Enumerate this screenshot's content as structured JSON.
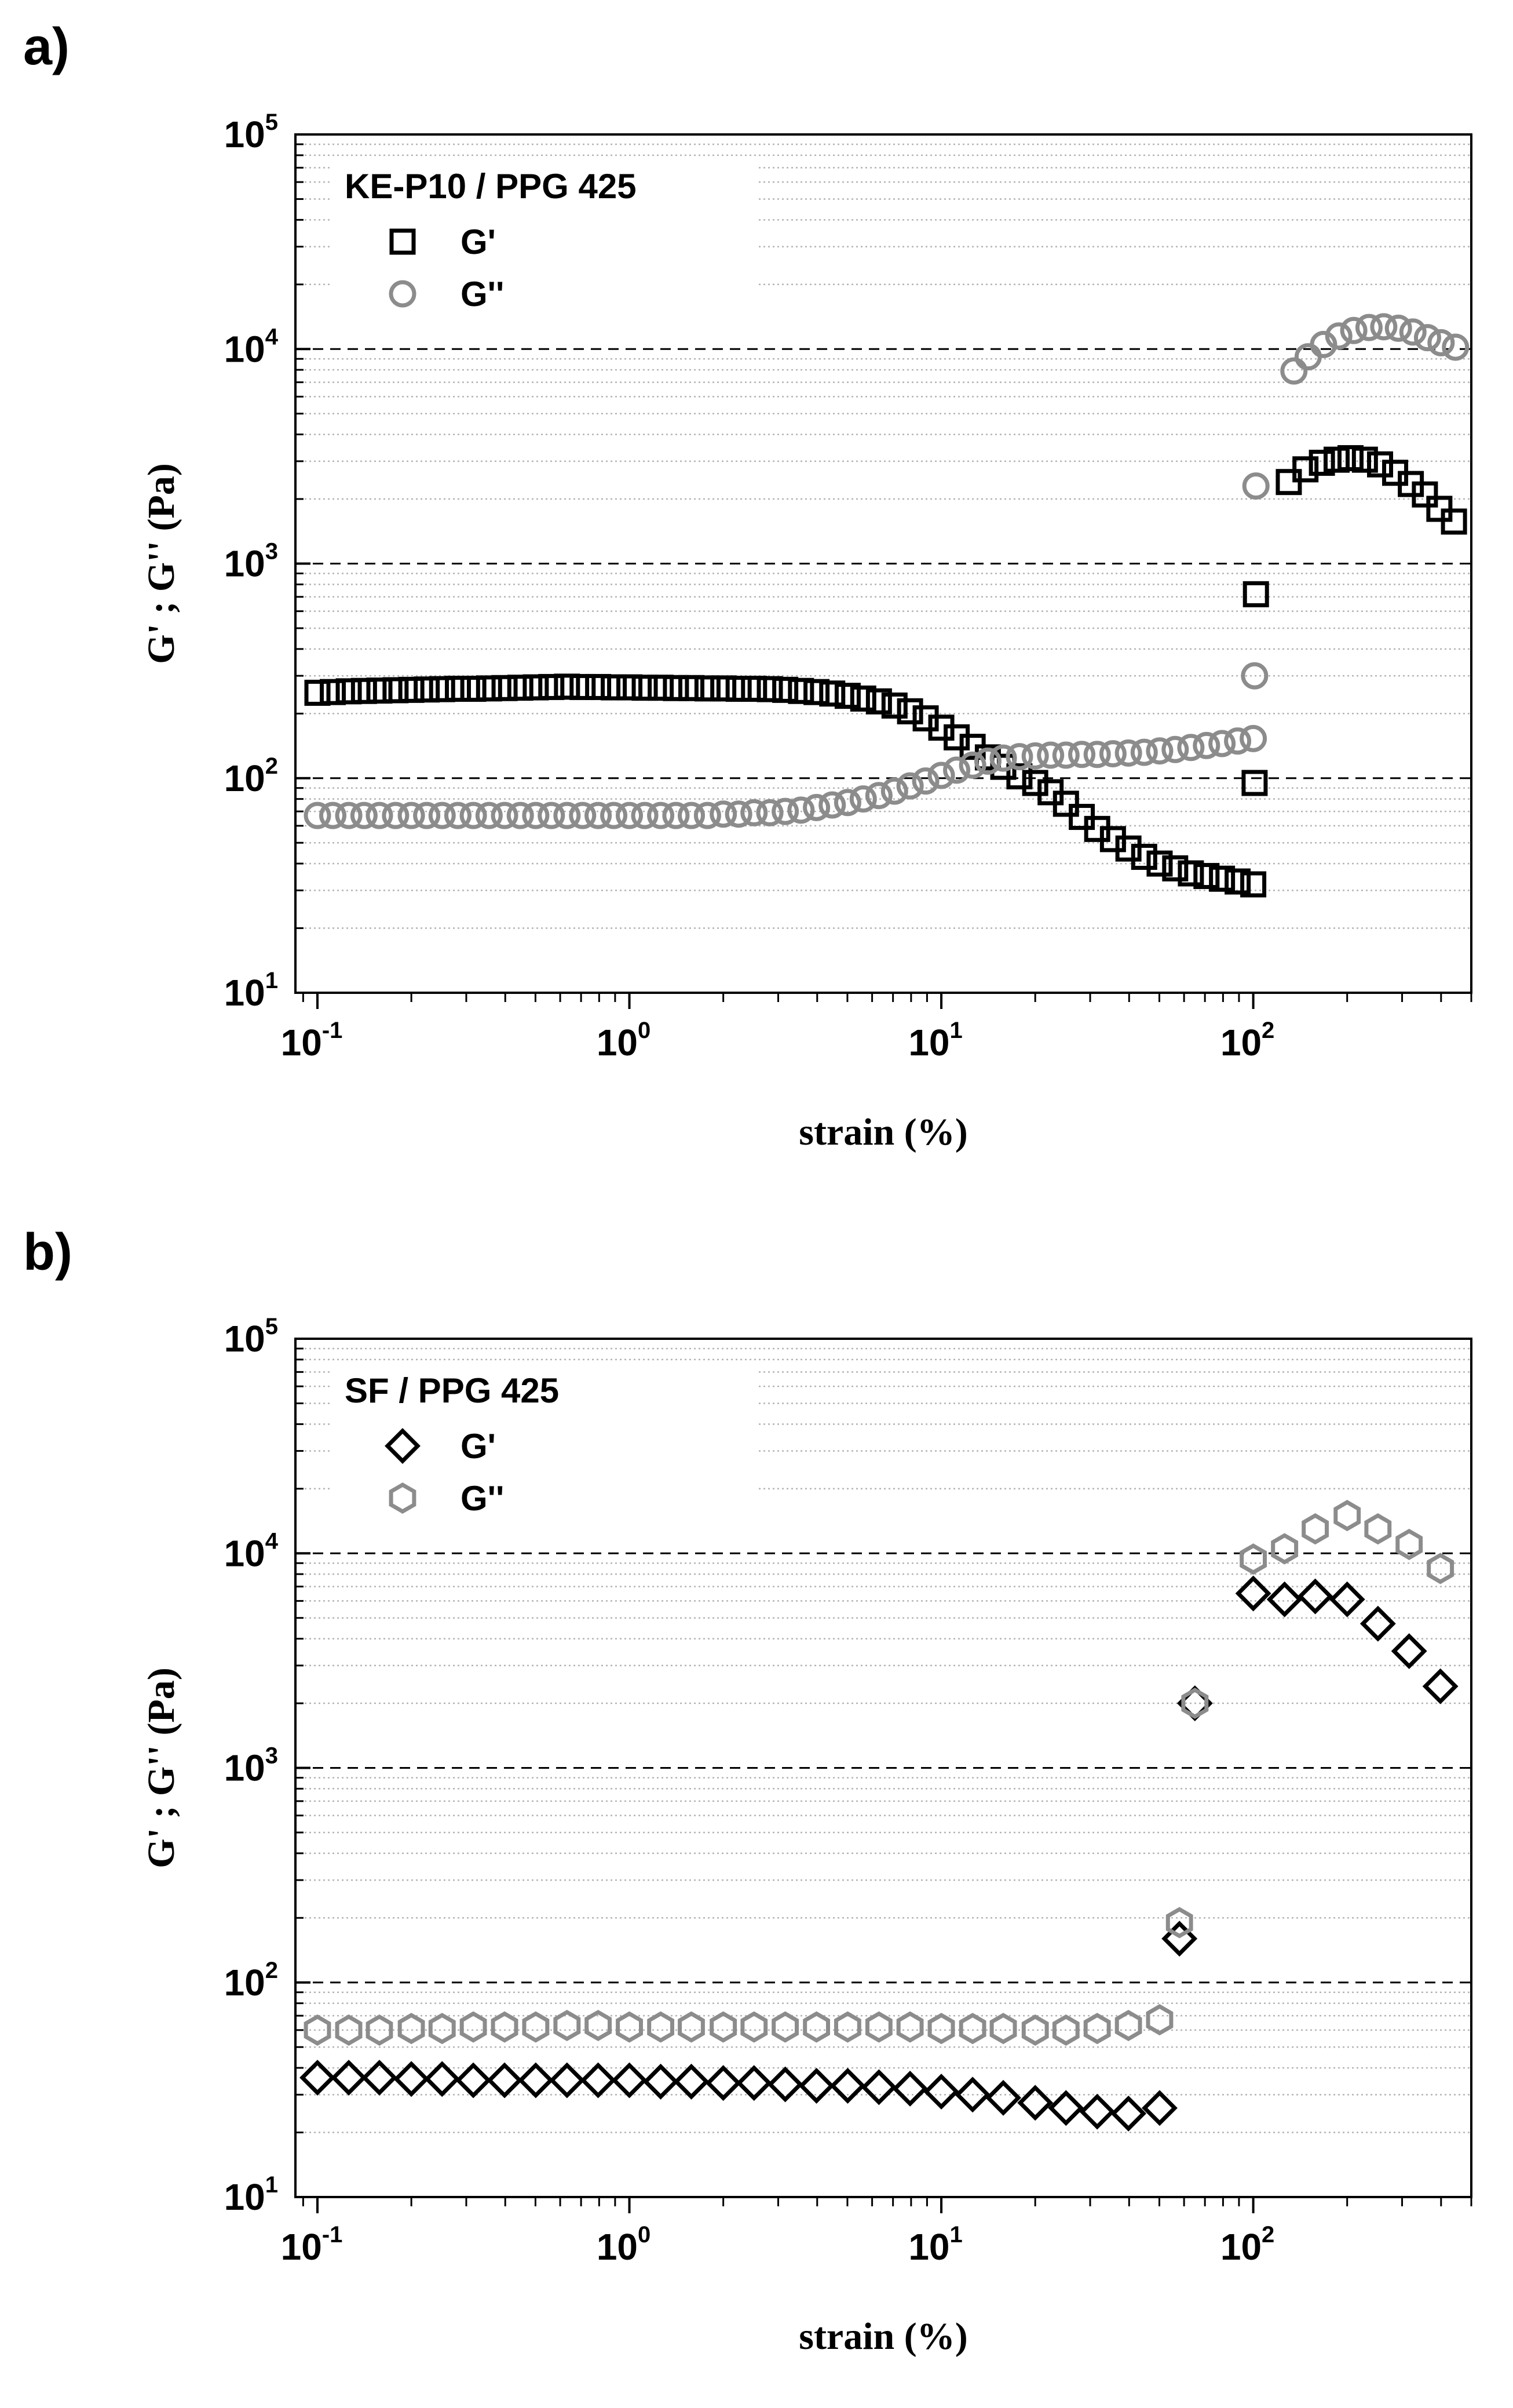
{
  "panels": {
    "a": {
      "label": "a)"
    },
    "b": {
      "label": "b)"
    }
  },
  "colors": {
    "gprime": "#000000",
    "gdouble": "#8c8c8c",
    "grid": "#b4b4b4",
    "decade": "#000000"
  },
  "chart_data": [
    {
      "type": "scatter",
      "x_scale": "log",
      "y_scale": "log",
      "xlim": [
        0.085,
        500
      ],
      "ylim": [
        10,
        100000
      ],
      "xlabel": "strain   (%)",
      "ylabel": "G' ; G''   (Pa)",
      "x_ticks": [
        {
          "base": "10",
          "exp": "-1",
          "value": 0.1
        },
        {
          "base": "10",
          "exp": "0",
          "value": 1
        },
        {
          "base": "10",
          "exp": "1",
          "value": 10
        },
        {
          "base": "10",
          "exp": "2",
          "value": 100
        }
      ],
      "y_ticks": [
        {
          "base": "10",
          "exp": "1",
          "value": 10
        },
        {
          "base": "10",
          "exp": "2",
          "value": 100
        },
        {
          "base": "10",
          "exp": "3",
          "value": 1000
        },
        {
          "base": "10",
          "exp": "4",
          "value": 10000
        },
        {
          "base": "10",
          "exp": "5",
          "value": 100000
        }
      ],
      "legend": {
        "title": "KE-P10 / PPG 425",
        "position": "top-left"
      },
      "series": [
        {
          "name": "G'",
          "marker": "square",
          "color": "#000000",
          "points": [
            [
              0.1,
              250
            ],
            [
              0.112,
              252
            ],
            [
              0.126,
              254
            ],
            [
              0.141,
              255
            ],
            [
              0.158,
              256
            ],
            [
              0.178,
              257
            ],
            [
              0.2,
              258
            ],
            [
              0.224,
              259
            ],
            [
              0.251,
              260
            ],
            [
              0.282,
              261
            ],
            [
              0.316,
              261
            ],
            [
              0.355,
              262
            ],
            [
              0.398,
              263
            ],
            [
              0.447,
              264
            ],
            [
              0.501,
              265
            ],
            [
              0.562,
              266
            ],
            [
              0.631,
              267
            ],
            [
              0.708,
              266
            ],
            [
              0.794,
              266
            ],
            [
              0.891,
              265
            ],
            [
              1.0,
              265
            ],
            [
              1.12,
              264
            ],
            [
              1.26,
              264
            ],
            [
              1.41,
              263
            ],
            [
              1.58,
              263
            ],
            [
              1.78,
              262
            ],
            [
              2.0,
              262
            ],
            [
              2.24,
              261
            ],
            [
              2.51,
              261
            ],
            [
              2.82,
              260
            ],
            [
              3.16,
              258
            ],
            [
              3.55,
              255
            ],
            [
              3.98,
              252
            ],
            [
              4.47,
              248
            ],
            [
              5.01,
              242
            ],
            [
              5.62,
              235
            ],
            [
              6.31,
              228
            ],
            [
              7.08,
              218
            ],
            [
              7.94,
              205
            ],
            [
              8.91,
              190
            ],
            [
              10.0,
              172
            ],
            [
              11.2,
              155
            ],
            [
              12.6,
              140
            ],
            [
              14.1,
              125
            ],
            [
              15.8,
              113
            ],
            [
              17.8,
              102
            ],
            [
              20.0,
              95
            ],
            [
              22.4,
              86
            ],
            [
              25.1,
              76
            ],
            [
              28.2,
              66
            ],
            [
              31.6,
              58
            ],
            [
              35.5,
              52
            ],
            [
              39.8,
              47
            ],
            [
              44.7,
              43
            ],
            [
              50.1,
              40
            ],
            [
              56.2,
              38
            ],
            [
              63.1,
              36
            ],
            [
              70.8,
              35
            ],
            [
              79.4,
              34
            ],
            [
              89.1,
              33
            ],
            [
              100,
              32
            ],
            [
              101,
              95
            ],
            [
              102,
              720
            ],
            [
              130,
              2400
            ],
            [
              147,
              2750
            ],
            [
              166,
              2950
            ],
            [
              185,
              3050
            ],
            [
              205,
              3100
            ],
            [
              228,
              3050
            ],
            [
              255,
              2900
            ],
            [
              285,
              2650
            ],
            [
              320,
              2350
            ],
            [
              355,
              2100
            ],
            [
              395,
              1800
            ],
            [
              440,
              1570
            ]
          ]
        },
        {
          "name": "G''",
          "marker": "circle",
          "color": "#8c8c8c",
          "points": [
            [
              0.1,
              67
            ],
            [
              0.112,
              67
            ],
            [
              0.126,
              67
            ],
            [
              0.141,
              67
            ],
            [
              0.158,
              67
            ],
            [
              0.178,
              67
            ],
            [
              0.2,
              67
            ],
            [
              0.224,
              67
            ],
            [
              0.251,
              67
            ],
            [
              0.282,
              67
            ],
            [
              0.316,
              67
            ],
            [
              0.355,
              67
            ],
            [
              0.398,
              67
            ],
            [
              0.447,
              67
            ],
            [
              0.501,
              67
            ],
            [
              0.562,
              67
            ],
            [
              0.631,
              67
            ],
            [
              0.708,
              67
            ],
            [
              0.794,
              67
            ],
            [
              0.891,
              67
            ],
            [
              1.0,
              67
            ],
            [
              1.12,
              67
            ],
            [
              1.26,
              67
            ],
            [
              1.41,
              67
            ],
            [
              1.58,
              67
            ],
            [
              1.78,
              67
            ],
            [
              2.0,
              68
            ],
            [
              2.24,
              68
            ],
            [
              2.51,
              69
            ],
            [
              2.82,
              69
            ],
            [
              3.16,
              70
            ],
            [
              3.55,
              71
            ],
            [
              3.98,
              73
            ],
            [
              4.47,
              75
            ],
            [
              5.01,
              77
            ],
            [
              5.62,
              80
            ],
            [
              6.31,
              83
            ],
            [
              7.08,
              87
            ],
            [
              7.94,
              92
            ],
            [
              8.91,
              97
            ],
            [
              10.0,
              103
            ],
            [
              11.2,
              109
            ],
            [
              12.6,
              115
            ],
            [
              14.1,
              120
            ],
            [
              15.8,
              124
            ],
            [
              17.8,
              126
            ],
            [
              20.0,
              127
            ],
            [
              22.4,
              128
            ],
            [
              25.1,
              128
            ],
            [
              28.2,
              129
            ],
            [
              31.6,
              129
            ],
            [
              35.5,
              130
            ],
            [
              39.8,
              131
            ],
            [
              44.7,
              132
            ],
            [
              50.1,
              134
            ],
            [
              56.2,
              136
            ],
            [
              63.1,
              139
            ],
            [
              70.8,
              142
            ],
            [
              79.4,
              145
            ],
            [
              89.1,
              149
            ],
            [
              100,
              153
            ],
            [
              101,
              300
            ],
            [
              102,
              2300
            ],
            [
              135,
              7900
            ],
            [
              150,
              9200
            ],
            [
              168,
              10500
            ],
            [
              188,
              11500
            ],
            [
              210,
              12200
            ],
            [
              235,
              12600
            ],
            [
              262,
              12700
            ],
            [
              292,
              12500
            ],
            [
              325,
              12000
            ],
            [
              362,
              11300
            ],
            [
              400,
              10700
            ],
            [
              445,
              10200
            ]
          ]
        }
      ]
    },
    {
      "type": "scatter",
      "x_scale": "log",
      "y_scale": "log",
      "xlim": [
        0.085,
        500
      ],
      "ylim": [
        10,
        100000
      ],
      "xlabel": "strain   (%)",
      "ylabel": "G' ; G''   (Pa)",
      "x_ticks": [
        {
          "base": "10",
          "exp": "-1",
          "value": 0.1
        },
        {
          "base": "10",
          "exp": "0",
          "value": 1
        },
        {
          "base": "10",
          "exp": "1",
          "value": 10
        },
        {
          "base": "10",
          "exp": "2",
          "value": 100
        }
      ],
      "y_ticks": [
        {
          "base": "10",
          "exp": "1",
          "value": 10
        },
        {
          "base": "10",
          "exp": "2",
          "value": 100
        },
        {
          "base": "10",
          "exp": "3",
          "value": 1000
        },
        {
          "base": "10",
          "exp": "4",
          "value": 10000
        },
        {
          "base": "10",
          "exp": "5",
          "value": 100000
        }
      ],
      "legend": {
        "title": "SF / PPG 425",
        "position": "top-left"
      },
      "series": [
        {
          "name": "G'",
          "marker": "diamond",
          "color": "#000000",
          "points": [
            [
              0.1,
              36
            ],
            [
              0.126,
              36
            ],
            [
              0.158,
              36
            ],
            [
              0.2,
              35.5
            ],
            [
              0.251,
              35.5
            ],
            [
              0.316,
              35
            ],
            [
              0.398,
              35
            ],
            [
              0.501,
              35
            ],
            [
              0.631,
              35
            ],
            [
              0.794,
              35
            ],
            [
              1.0,
              35
            ],
            [
              1.26,
              34.5
            ],
            [
              1.58,
              34.5
            ],
            [
              2.0,
              34
            ],
            [
              2.51,
              34
            ],
            [
              3.16,
              33.5
            ],
            [
              3.98,
              33
            ],
            [
              5.01,
              33
            ],
            [
              6.31,
              32.5
            ],
            [
              7.94,
              32
            ],
            [
              10.0,
              31
            ],
            [
              12.6,
              30
            ],
            [
              15.8,
              29
            ],
            [
              20.0,
              27.5
            ],
            [
              25.1,
              26
            ],
            [
              31.6,
              25
            ],
            [
              39.8,
              24.5
            ],
            [
              50.1,
              26
            ],
            [
              58,
              160
            ],
            [
              65,
              2000
            ],
            [
              100,
              6500
            ],
            [
              126,
              6100
            ],
            [
              158,
              6300
            ],
            [
              200,
              6100
            ],
            [
              251,
              4700
            ],
            [
              316,
              3500
            ],
            [
              398,
              2400
            ]
          ]
        },
        {
          "name": "G''",
          "marker": "hexagon",
          "color": "#8c8c8c",
          "points": [
            [
              0.1,
              60
            ],
            [
              0.126,
              60
            ],
            [
              0.158,
              60
            ],
            [
              0.2,
              61
            ],
            [
              0.251,
              61
            ],
            [
              0.316,
              62
            ],
            [
              0.398,
              62
            ],
            [
              0.501,
              62
            ],
            [
              0.631,
              63
            ],
            [
              0.794,
              63
            ],
            [
              1.0,
              62
            ],
            [
              1.26,
              62
            ],
            [
              1.58,
              62
            ],
            [
              2.0,
              62
            ],
            [
              2.51,
              62
            ],
            [
              3.16,
              62
            ],
            [
              3.98,
              62
            ],
            [
              5.01,
              62
            ],
            [
              6.31,
              62
            ],
            [
              7.94,
              62
            ],
            [
              10.0,
              61
            ],
            [
              12.6,
              61
            ],
            [
              15.8,
              61
            ],
            [
              20.0,
              60
            ],
            [
              25.1,
              60
            ],
            [
              31.6,
              61
            ],
            [
              39.8,
              63
            ],
            [
              50.1,
              67
            ],
            [
              58,
              190
            ],
            [
              65,
              2000
            ],
            [
              100,
              9400
            ],
            [
              126,
              10500
            ],
            [
              158,
              13000
            ],
            [
              200,
              15000
            ],
            [
              251,
              13000
            ],
            [
              316,
              11000
            ],
            [
              398,
              8500
            ]
          ]
        }
      ]
    }
  ]
}
